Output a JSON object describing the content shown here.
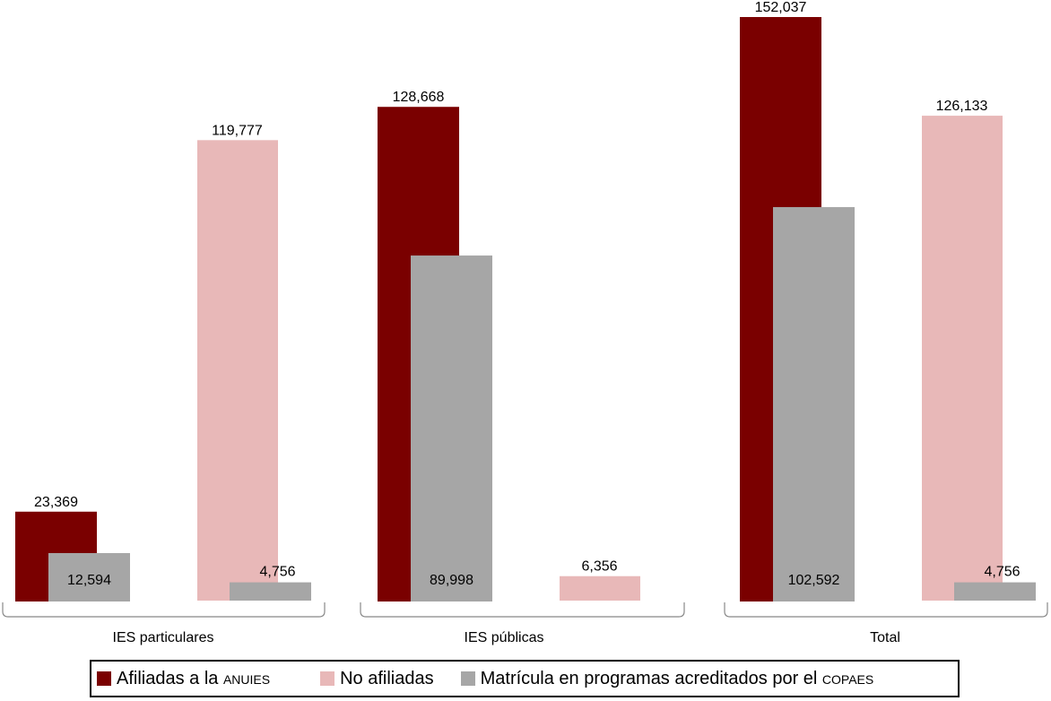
{
  "chart_data": {
    "type": "bar",
    "groups": [
      "IES particulares",
      "IES públicas",
      "Total"
    ],
    "series": [
      {
        "name": "Afiliadas a la ANUIES",
        "color": "#7a0000",
        "values": [
          23369,
          128668,
          152037
        ]
      },
      {
        "name": "No afiliadas",
        "color": "#e8b8b8",
        "values": [
          119777,
          6356,
          126133
        ]
      },
      {
        "name": "Matrícula en programas acreditados por el COPAES",
        "color": "#a6a6a6",
        "values_overlaid_on_afiliadas": [
          12594,
          89998,
          102592
        ],
        "values_overlaid_on_no_afiliadas": [
          4756,
          null,
          4756
        ]
      }
    ],
    "data_labels": {
      "afiliadas": [
        "23,369",
        "128,668",
        "152,037"
      ],
      "no_afiliadas": [
        "119,777",
        "6,356",
        "126,133"
      ],
      "acreditados_afiliadas": [
        "12,594",
        "89,998",
        "102,592"
      ],
      "acreditados_no_afiliadas": [
        "4,756",
        "",
        "4,756"
      ]
    },
    "ylim": [
      0,
      152037
    ],
    "grid": false,
    "legend_placement": "bottom"
  },
  "legend": {
    "afiliadas": {
      "text": "Afiliadas a la ",
      "smallcaps": "ANUIES"
    },
    "no_afiliadas": {
      "text": "No afiliadas"
    },
    "acreditados": {
      "text": "Matrícula en programas acreditados por el ",
      "smallcaps": "COPAES"
    }
  }
}
